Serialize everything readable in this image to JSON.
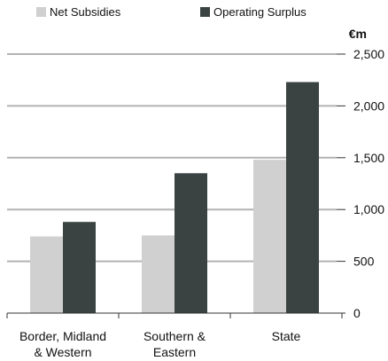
{
  "legend": {
    "items": [
      {
        "label": "Net Subsidies",
        "color": "#d0d0d0"
      },
      {
        "label": "Operating Surplus",
        "color": "#3a4242"
      }
    ]
  },
  "unit_label": "€m",
  "chart_data": {
    "type": "bar",
    "categories": [
      [
        "Border, Midland",
        "& Western"
      ],
      [
        "Southern &",
        "Eastern"
      ],
      [
        "State"
      ]
    ],
    "series": [
      {
        "name": "Net Subsidies",
        "color": "#d0d0d0",
        "values": [
          740,
          750,
          1480
        ]
      },
      {
        "name": "Operating Surplus",
        "color": "#3a4242",
        "values": [
          880,
          1350,
          2230
        ]
      }
    ],
    "ylim": [
      0,
      2500
    ],
    "yticks": [
      0,
      500,
      1000,
      1500,
      2000,
      2500
    ],
    "ytick_labels": [
      "0",
      "500",
      "1,000",
      "1,500",
      "2,000",
      "2,500"
    ],
    "ylabel": "€m",
    "grid": true,
    "legend_position": "top"
  }
}
